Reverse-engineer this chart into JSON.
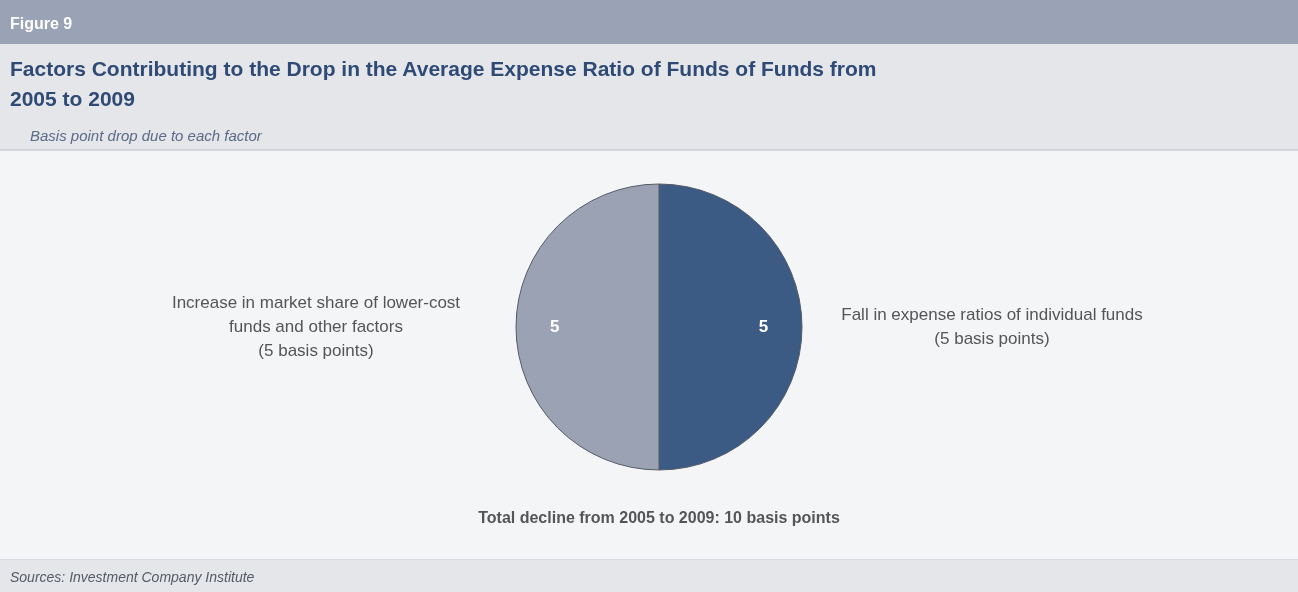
{
  "chart_data": {
    "type": "pie",
    "title": "Factors Contributing to the Drop in the Average Expense Ratio of Funds of Funds from 2005 to 2009",
    "subtitle": "Basis point drop due to each factor",
    "categories": [
      "Fall in expense ratios of individual funds\n(5 basis points)",
      "Increase in market share of lower-cost\nfunds and other factors\n(5 basis points)"
    ],
    "values": [
      5,
      5
    ],
    "colors": [
      "#3b5a84",
      "#9aa2b3"
    ],
    "data_labels": true,
    "annotations": [
      "Figure 9",
      "Total decline from 2005 to 2009: 10 basis points",
      "Sources: Investment Company Institute"
    ]
  }
}
